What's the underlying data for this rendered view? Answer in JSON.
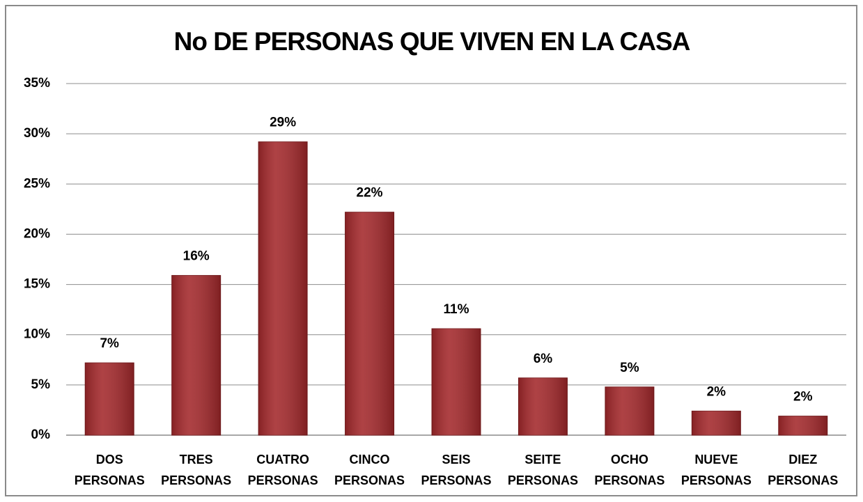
{
  "chart_data": {
    "type": "bar",
    "title": "No DE PERSONAS QUE VIVEN EN LA CASA",
    "categories": [
      [
        "DOS",
        "PERSONAS"
      ],
      [
        "TRES",
        "PERSONAS"
      ],
      [
        "CUATRO",
        "PERSONAS"
      ],
      [
        "CINCO",
        "PERSONAS"
      ],
      [
        "SEIS",
        "PERSONAS"
      ],
      [
        "SEITE",
        "PERSONAS"
      ],
      [
        "OCHO",
        "PERSONAS"
      ],
      [
        "NUEVE",
        "PERSONAS"
      ],
      [
        "DIEZ",
        "PERSONAS"
      ]
    ],
    "values": [
      7.2,
      15.9,
      29.2,
      22.2,
      10.6,
      5.7,
      4.8,
      2.4,
      1.9
    ],
    "value_labels": [
      "7%",
      "16%",
      "29%",
      "22%",
      "11%",
      "6%",
      "5%",
      "2%",
      "2%"
    ],
    "color": "#a3282b",
    "ylim": [
      0,
      35
    ],
    "yticks": [
      {
        "value": 0,
        "label": "0%"
      },
      {
        "value": 5,
        "label": "5%"
      },
      {
        "value": 10,
        "label": "10%"
      },
      {
        "value": 15,
        "label": "15%"
      },
      {
        "value": 20,
        "label": "20%"
      },
      {
        "value": 25,
        "label": "25%"
      },
      {
        "value": 30,
        "label": "30%"
      },
      {
        "value": 35,
        "label": "35%"
      }
    ],
    "grid": true
  }
}
